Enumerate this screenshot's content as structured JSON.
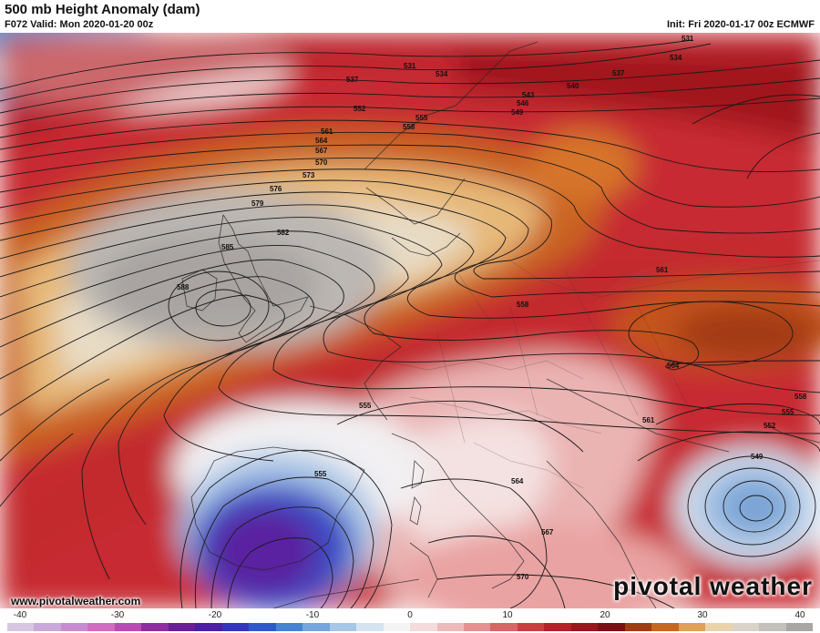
{
  "header": {
    "title": "500 mb Height Anomaly (dam)",
    "valid": "F072 Valid: Mon 2020-01-20 00z",
    "init": "Init: Fri 2020-01-17 00z ECMWF"
  },
  "footer": {
    "website": "www.pivotalweather.com",
    "brand": "pivotal weather"
  },
  "colorbar": {
    "ticks": [
      "-40",
      "-30",
      "-20",
      "-10",
      "0",
      "10",
      "20",
      "30",
      "40"
    ],
    "colors": [
      "#d6c6e2",
      "#c9a9d9",
      "#c98bd0",
      "#d36cc0",
      "#bb4ab2",
      "#8e2ea0",
      "#6a1f98",
      "#4d1ea7",
      "#3334bf",
      "#2e59cc",
      "#4683d4",
      "#73a6dc",
      "#a6c7e6",
      "#d5e4f0",
      "#f4f4f4",
      "#f3dcdb",
      "#eebab9",
      "#e59190",
      "#d96565",
      "#cc3d3f",
      "#b81f27",
      "#9c141c",
      "#7d0f13",
      "#a33b13",
      "#c8661e",
      "#e0a055",
      "#ead3aa",
      "#d9d3ca",
      "#c4c0bb",
      "#aaa6a3"
    ]
  },
  "contour_labels": [
    {
      "value": "531"
    },
    {
      "value": "534"
    },
    {
      "value": "537"
    },
    {
      "value": "552"
    },
    {
      "value": "555"
    },
    {
      "value": "558"
    },
    {
      "value": "561"
    },
    {
      "value": "564"
    },
    {
      "value": "567"
    },
    {
      "value": "570"
    },
    {
      "value": "573"
    },
    {
      "value": "576"
    },
    {
      "value": "579"
    },
    {
      "value": "582"
    },
    {
      "value": "585"
    },
    {
      "value": "588"
    },
    {
      "value": "540"
    },
    {
      "value": "543"
    },
    {
      "value": "546"
    },
    {
      "value": "549"
    },
    {
      "value": "537"
    },
    {
      "value": "534"
    },
    {
      "value": "531"
    },
    {
      "value": "561"
    },
    {
      "value": "558"
    },
    {
      "value": "564"
    },
    {
      "value": "558"
    },
    {
      "value": "555"
    },
    {
      "value": "552"
    },
    {
      "value": "549"
    },
    {
      "value": "555"
    },
    {
      "value": "555"
    },
    {
      "value": "561"
    },
    {
      "value": "564"
    },
    {
      "value": "567"
    },
    {
      "value": "570"
    }
  ]
}
